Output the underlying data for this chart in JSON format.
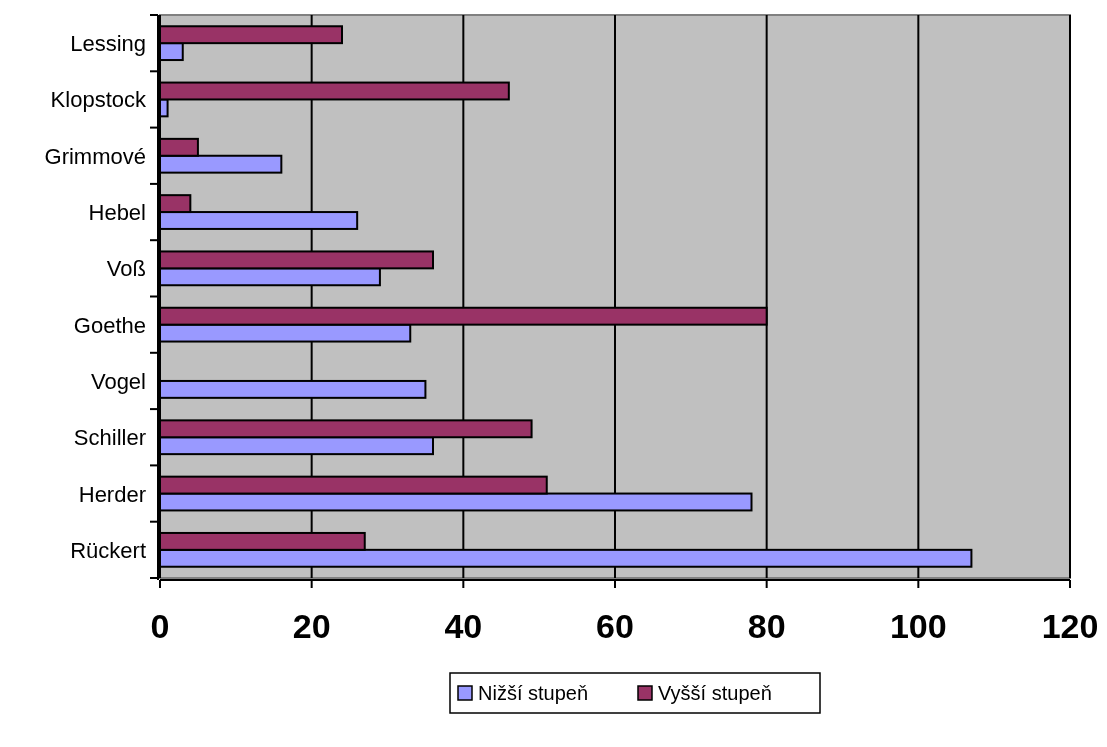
{
  "chart_data": {
    "type": "bar",
    "orientation": "horizontal",
    "categories": [
      "Lessing",
      "Klopstock",
      "Grimmové",
      "Hebel",
      "Voß",
      "Goethe",
      "Vogel",
      "Schiller",
      "Herder",
      "Rückert"
    ],
    "series": [
      {
        "name": "Nižší stupeň",
        "color": "#9999ff",
        "values": [
          3,
          1,
          16,
          26,
          29,
          33,
          35,
          36,
          78,
          107
        ]
      },
      {
        "name": "Vyšší stupeň",
        "color": "#993366",
        "values": [
          24,
          46,
          5,
          4,
          36,
          80,
          0,
          49,
          51,
          27
        ]
      }
    ],
    "xlim": [
      0,
      120
    ],
    "xticks": [
      0,
      20,
      40,
      60,
      80,
      100,
      120
    ],
    "grid": "x",
    "legend": "bottom"
  }
}
